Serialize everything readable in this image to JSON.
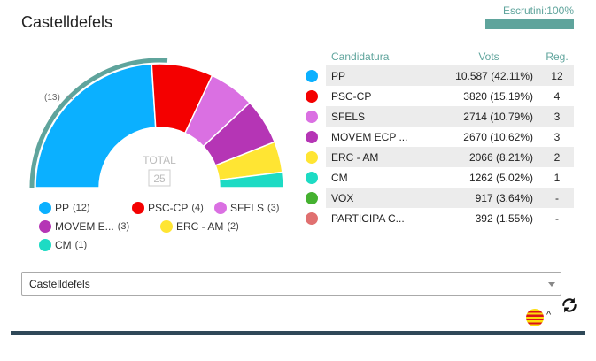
{
  "header": {
    "title": "Castelldefels",
    "scrutiny_label": "Escrutini:100%",
    "scrutiny_percent": 100,
    "scrutiny_color": "#5fa49c"
  },
  "hemicycle": {
    "total_label": "TOTAL",
    "total_seats": "25",
    "majority_note": "(13)",
    "majority_arc_color": "#5fa49c",
    "majority_seats": 13
  },
  "table": {
    "headers": {
      "name": "Candidatura",
      "votes": "Vots",
      "seats": "Reg."
    },
    "rows": [
      {
        "color": "#0bb0ff",
        "name": "PP",
        "votes": "10.587 (42.11%)",
        "seats": "12"
      },
      {
        "color": "#f40000",
        "name": "PSC-CP",
        "votes": "3820 (15.19%)",
        "seats": "4"
      },
      {
        "color": "#da70e2",
        "name": "SFELS",
        "votes": "2714 (10.79%)",
        "seats": "3"
      },
      {
        "color": "#b535b5",
        "name": "MOVEM ECP ...",
        "votes": "2670 (10.62%)",
        "seats": "3"
      },
      {
        "color": "#ffe533",
        "name": "ERC - AM",
        "votes": "2066 (8.21%)",
        "seats": "2"
      },
      {
        "color": "#1ddbc4",
        "name": "CM",
        "votes": "1262 (5.02%)",
        "seats": "1"
      },
      {
        "color": "#45b130",
        "name": "VOX",
        "votes": "917 (3.64%)",
        "seats": "-"
      },
      {
        "color": "#e07070",
        "name": "PARTICIPA C...",
        "votes": "392 (1.55%)",
        "seats": "-"
      }
    ]
  },
  "legend": [
    {
      "name": "PP",
      "seats": "(12)",
      "color": "#0bb0ff"
    },
    {
      "name": "PSC-CP",
      "seats": "(4)",
      "color": "#f40000"
    },
    {
      "name": "SFELS",
      "seats": "(3)",
      "color": "#da70e2"
    },
    {
      "name": "MOVEM E...",
      "seats": "(3)",
      "color": "#b535b5"
    },
    {
      "name": "ERC - AM",
      "seats": "(2)",
      "color": "#ffe533"
    },
    {
      "name": "CM",
      "seats": "(1)",
      "color": "#1ddbc4"
    }
  ],
  "selector": {
    "value": "Castelldefels"
  },
  "footer": {
    "flag_icon": "catalan-flag-icon",
    "refresh_icon": "refresh-icon"
  }
}
